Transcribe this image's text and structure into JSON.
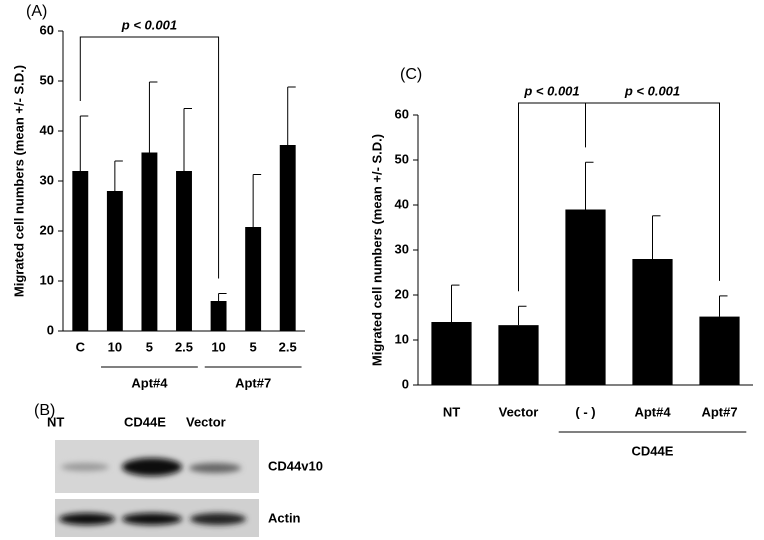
{
  "chart_data": [
    {
      "type": "bar",
      "panel": "(A)",
      "ylabel": "Migrated cell numbers (mean +/- S.D.)",
      "categories": [
        "C",
        "10",
        "5",
        "2.5",
        "10",
        "5",
        "2.5"
      ],
      "values": [
        32,
        28,
        35.7,
        32,
        6,
        20.8,
        37.2
      ],
      "errors": [
        11,
        6,
        14.1,
        12.5,
        1.5,
        10.5,
        11.6
      ],
      "color": "#000000",
      "ylim": [
        0,
        60
      ],
      "yticks": [
        0,
        10,
        20,
        30,
        40,
        50,
        60
      ],
      "groups": [
        "Apt#4",
        "Apt#7"
      ],
      "annotations": [
        "p < 0.001"
      ]
    },
    {
      "type": "bar",
      "panel": "(C)",
      "ylabel": "Migrated cell numbers (mean +/- S.D.)",
      "categories": [
        "NT",
        "Vector",
        "( - )",
        "Apt#4",
        "Apt#7"
      ],
      "values": [
        14,
        13.3,
        39,
        28,
        15.2
      ],
      "errors": [
        8.2,
        4.2,
        10.5,
        9.6,
        4.6
      ],
      "color": "#000000",
      "ylim": [
        0,
        60
      ],
      "yticks": [
        0,
        10,
        20,
        30,
        40,
        50,
        60
      ],
      "groups": [
        "CD44E"
      ],
      "annotations": [
        "p < 0.001",
        "p < 0.001"
      ]
    }
  ],
  "blot": {
    "panel": "(B)",
    "lanes": [
      "NT",
      "CD44E",
      "Vector"
    ],
    "rows": [
      "CD44v10",
      "Actin"
    ]
  }
}
